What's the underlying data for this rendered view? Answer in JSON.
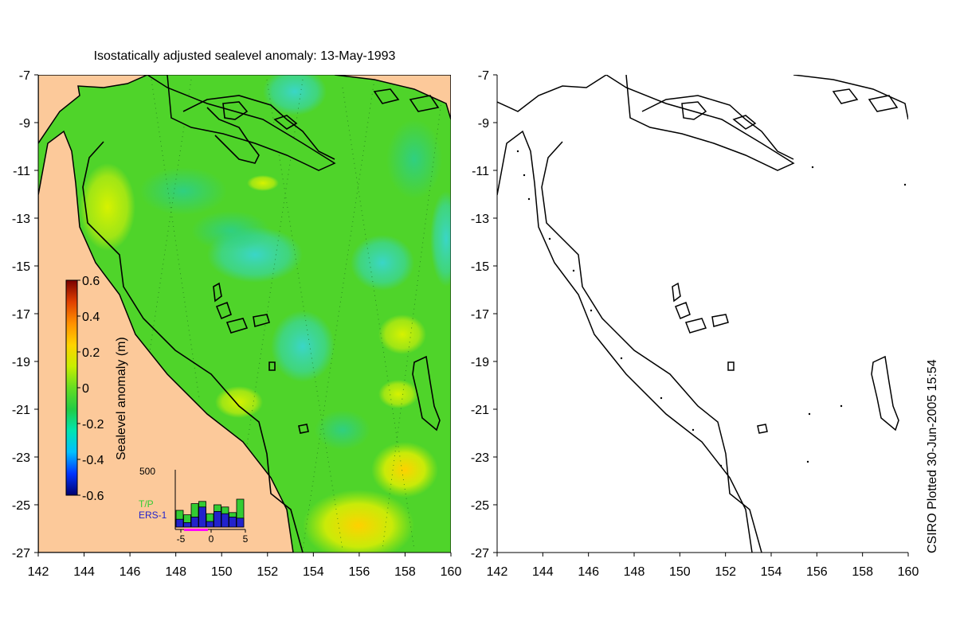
{
  "title": "Isostatically adjusted sealevel anomaly: 13-May-1993",
  "side_note": "CSIRO Plotted 30-Jun-2005 15:54",
  "map": {
    "lon_ticks": [
      "142",
      "144",
      "146",
      "148",
      "150",
      "152",
      "154",
      "156",
      "158",
      "160"
    ],
    "lat_ticks": [
      "-7",
      "-9",
      "-11",
      "-13",
      "-15",
      "-17",
      "-19",
      "-21",
      "-23",
      "-25",
      "-27"
    ],
    "lon_range": [
      142,
      160
    ],
    "lat_range": [
      -27,
      -7
    ]
  },
  "colorbar": {
    "label": "Sealevel anomaly (m)",
    "ticks": [
      "0.6",
      "0.4",
      "0.2",
      "0",
      "-0.2",
      "-0.4",
      "-0.6"
    ],
    "range": [
      -0.6,
      0.6
    ],
    "stops": [
      "#00006e",
      "#0033ff",
      "#00bfff",
      "#00e5b0",
      "#22cc44",
      "#66dd22",
      "#c8ee00",
      "#ffd200",
      "#ff9000",
      "#e04000",
      "#7a0000"
    ]
  },
  "inset": {
    "ymax_label": "500",
    "x_ticks": [
      "-5",
      "0",
      "5"
    ],
    "legend": [
      {
        "label": "T/P",
        "color": "#33cc33"
      },
      {
        "label": "ERS-1",
        "color": "#2222cc"
      }
    ],
    "highlight_color": "#ff00ff",
    "tp_counts": [
      150,
      110,
      210,
      230,
      120,
      200,
      180,
      130,
      250
    ],
    "ers_counts": [
      70,
      40,
      90,
      180,
      50,
      140,
      120,
      90,
      80
    ]
  },
  "colors": {
    "land": "#fcc99a",
    "ocean": "#4fd42a",
    "anomaly_positive": "#c8ee00",
    "anomaly_negative": "#36d49a",
    "coast": "#000000"
  }
}
